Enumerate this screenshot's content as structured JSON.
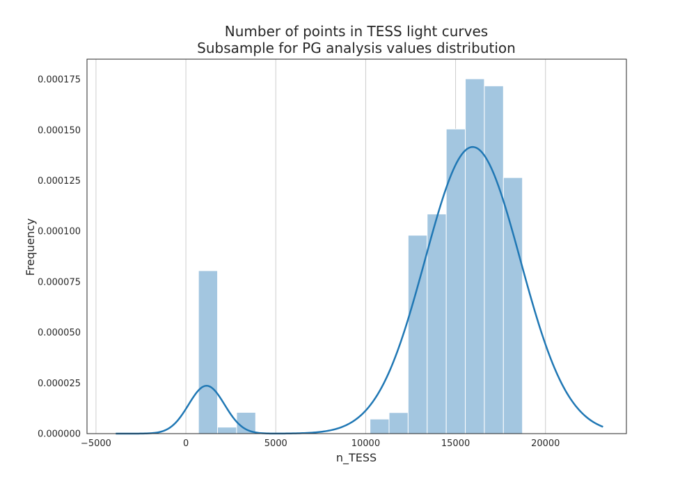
{
  "chart_data": {
    "type": "histogram",
    "title": "Number of points in TESS light curves",
    "subtitle": "Subsample for PG analysis values distribution",
    "xlabel": "n_TESS",
    "ylabel": "Frequency",
    "xlim": [
      -5500,
      24500
    ],
    "ylim": [
      0,
      0.000185
    ],
    "grid": "vertical",
    "xticks": [
      -5000,
      0,
      5000,
      10000,
      15000,
      20000
    ],
    "xtick_labels": [
      "−5000",
      "0",
      "5000",
      "10000",
      "15000",
      "20000"
    ],
    "yticks": [
      0,
      2.5e-05,
      5e-05,
      7.5e-05,
      0.0001,
      0.000125,
      0.00015,
      0.000175
    ],
    "ytick_labels": [
      "0.000000",
      "0.000025",
      "0.000050",
      "0.000075",
      "0.000100",
      "0.000125",
      "0.000150",
      "0.000175"
    ],
    "bar_color": "#a3c6e0",
    "bar_edge_color": "#ffffff",
    "bins": [
      {
        "x0": 700,
        "x1": 1760,
        "value": 8.05e-05
      },
      {
        "x0": 1760,
        "x1": 2820,
        "value": 3.2e-06
      },
      {
        "x0": 2820,
        "x1": 3880,
        "value": 1.05e-05
      },
      {
        "x0": 10240,
        "x1": 11300,
        "value": 7.2e-06
      },
      {
        "x0": 11300,
        "x1": 12360,
        "value": 1.04e-05
      },
      {
        "x0": 12360,
        "x1": 13420,
        "value": 9.8e-05
      },
      {
        "x0": 13420,
        "x1": 14480,
        "value": 0.0001085
      },
      {
        "x0": 14480,
        "x1": 15540,
        "value": 0.0001505
      },
      {
        "x0": 15540,
        "x1": 16600,
        "value": 0.0001753
      },
      {
        "x0": 16600,
        "x1": 17660,
        "value": 0.0001718
      },
      {
        "x0": 17660,
        "x1": 18720,
        "value": 0.0001265
      }
    ],
    "kde": {
      "color": "#1f77b4",
      "x_range": [
        -3900,
        23200
      ],
      "components": [
        {
          "weight": 0.0593,
          "mean": 1150,
          "sd": 1000
        },
        {
          "weight": 0.9407,
          "mean": 15950,
          "sd": 2650
        }
      ]
    }
  }
}
